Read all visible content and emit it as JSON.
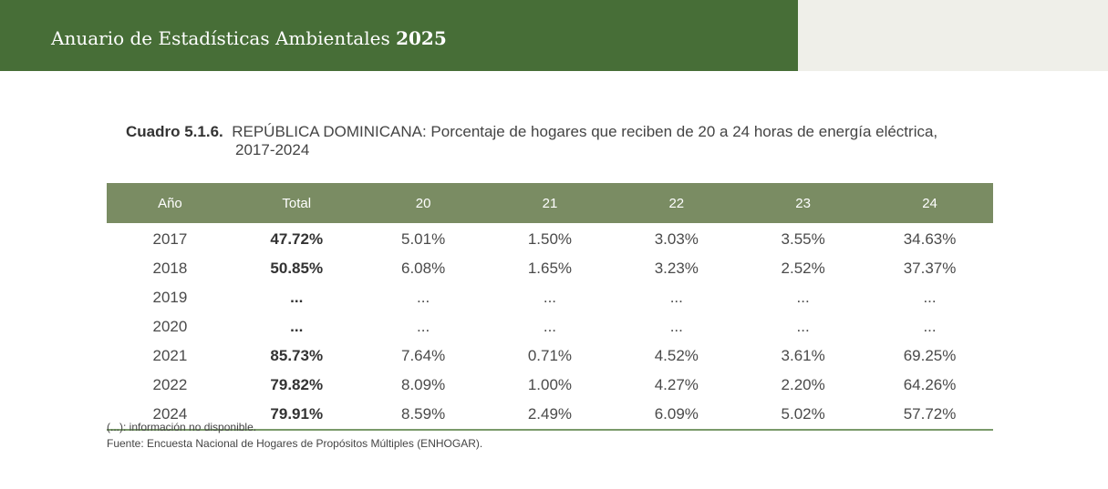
{
  "header": {
    "title": "Anuario de Estadísticas Ambientales",
    "year": "2025"
  },
  "caption": {
    "number": "Cuadro 5.1.6.",
    "text_line1": "REPÚBLICA DOMINICANA: Porcentaje de hogares que reciben de 20 a 24 horas de energía eléctrica,",
    "text_line2": "2017-2024"
  },
  "table": {
    "columns": [
      "Año",
      "Total",
      "20",
      "21",
      "22",
      "23",
      "24"
    ],
    "rows": [
      [
        "2017",
        "47.72%",
        "5.01%",
        "1.50%",
        "3.03%",
        "3.55%",
        "34.63%"
      ],
      [
        "2018",
        "50.85%",
        "6.08%",
        "1.65%",
        "3.23%",
        "2.52%",
        "37.37%"
      ],
      [
        "2019",
        "...",
        "...",
        "...",
        "...",
        "...",
        "..."
      ],
      [
        "2020",
        "...",
        "...",
        "...",
        "...",
        "...",
        "..."
      ],
      [
        "2021",
        "85.73%",
        "7.64%",
        "0.71%",
        "4.52%",
        "3.61%",
        "69.25%"
      ],
      [
        "2022",
        "79.82%",
        "8.09%",
        "1.00%",
        "4.27%",
        "2.20%",
        "64.26%"
      ],
      [
        "2024",
        "79.91%",
        "8.59%",
        "2.49%",
        "6.09%",
        "5.02%",
        "57.72%"
      ]
    ]
  },
  "notes": {
    "missing": "(...): información no disponible.",
    "source": "Fuente: Encuesta Nacional de Hogares de Propósitos Múltiples (ENHOGAR)."
  },
  "colors": {
    "banner": "#476e37",
    "table_header": "#7a8c63",
    "banner_side": "#efefe9"
  }
}
